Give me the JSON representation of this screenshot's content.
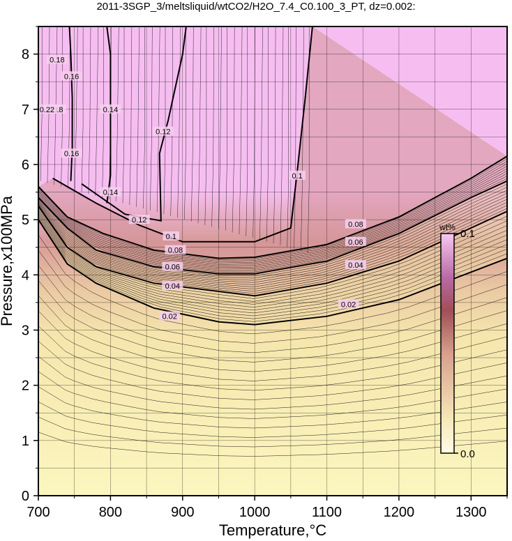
{
  "title": "2011-3SGP_3/meltsliquid/wtCO2/H2O_7.4_C0.100_3_PT, dz=0.002:",
  "chart_data": {
    "type": "heatmap",
    "xlabel": "Temperature,°C",
    "ylabel": "Pressure,x100MPa",
    "xlim": [
      700,
      1350
    ],
    "ylim": [
      0,
      8.5
    ],
    "x_ticks": [
      "700",
      "800",
      "900",
      "1000",
      "1100",
      "1200",
      "1300"
    ],
    "y_ticks": [
      "0",
      "1",
      "2",
      "3",
      "4",
      "5",
      "6",
      "7",
      "8"
    ],
    "grid": true,
    "colorbar": {
      "unit": "wt%",
      "min_label": "0.0",
      "max_label": "0.1",
      "low_color": "#fbf6bf",
      "mid_color": "#cf8f88",
      "high_color": "#f6bef0"
    },
    "contours": [
      {
        "level": 0.02,
        "label": "0.02",
        "points": [
          [
            700,
            5.0
          ],
          [
            740,
            4.2
          ],
          [
            780,
            3.85
          ],
          [
            860,
            3.4
          ],
          [
            950,
            3.15
          ],
          [
            1000,
            3.1
          ],
          [
            1100,
            3.25
          ],
          [
            1200,
            3.55
          ],
          [
            1300,
            4.05
          ],
          [
            1350,
            4.3
          ]
        ]
      },
      {
        "level": 0.04,
        "label": "0.04",
        "points": [
          [
            700,
            5.25
          ],
          [
            740,
            4.5
          ],
          [
            780,
            4.15
          ],
          [
            860,
            3.85
          ],
          [
            950,
            3.7
          ],
          [
            1000,
            3.62
          ],
          [
            1100,
            3.85
          ],
          [
            1200,
            4.25
          ],
          [
            1300,
            4.85
          ],
          [
            1350,
            5.15
          ]
        ]
      },
      {
        "level": 0.06,
        "label": "0.06",
        "points": [
          [
            700,
            5.4
          ],
          [
            740,
            4.85
          ],
          [
            780,
            4.45
          ],
          [
            860,
            4.15
          ],
          [
            950,
            4.02
          ],
          [
            1000,
            4.02
          ],
          [
            1100,
            4.25
          ],
          [
            1200,
            4.75
          ],
          [
            1300,
            5.4
          ],
          [
            1350,
            5.7
          ]
        ]
      },
      {
        "level": 0.08,
        "label": "0.08",
        "points": [
          [
            700,
            5.6
          ],
          [
            740,
            5.05
          ],
          [
            790,
            4.75
          ],
          [
            860,
            4.45
          ],
          [
            950,
            4.3
          ],
          [
            1000,
            4.32
          ],
          [
            1100,
            4.55
          ],
          [
            1200,
            5.05
          ],
          [
            1300,
            5.75
          ],
          [
            1350,
            6.15
          ]
        ]
      },
      {
        "level": 0.1,
        "label": "0.1",
        "points": [
          [
            720,
            5.75
          ],
          [
            780,
            5.3
          ],
          [
            840,
            4.9
          ],
          [
            900,
            4.6
          ],
          [
            1000,
            4.6
          ],
          [
            1050,
            4.85
          ],
          [
            1060,
            6.0
          ],
          [
            1070,
            7.2
          ],
          [
            1080,
            8.5
          ]
        ]
      },
      {
        "level": 0.12,
        "label": "0.12",
        "points": [
          [
            760,
            5.65
          ],
          [
            820,
            5.1
          ],
          [
            870,
            4.98
          ],
          [
            868,
            6.2
          ],
          [
            880,
            6.8
          ],
          [
            900,
            8.0
          ],
          [
            905,
            8.5
          ]
        ]
      },
      {
        "level": 0.14,
        "label": "0.14",
        "points": [
          [
            795,
            5.3
          ],
          [
            800,
            5.8
          ],
          [
            800,
            7.2
          ],
          [
            800,
            8.0
          ],
          [
            795,
            8.5
          ]
        ]
      },
      {
        "level": 0.16,
        "label": "0.16",
        "points": [
          [
            745,
            5.7
          ],
          [
            747,
            6.3
          ],
          [
            747,
            7.2
          ],
          [
            745,
            8.0
          ],
          [
            743,
            8.5
          ]
        ]
      }
    ],
    "contour_labels": [
      {
        "text": "0.02",
        "at": [
          882,
          3.25
        ]
      },
      {
        "text": "0.04",
        "at": [
          886,
          3.8
        ]
      },
      {
        "text": "0.06",
        "at": [
          886,
          4.15
        ]
      },
      {
        "text": "0.08",
        "at": [
          890,
          4.45
        ]
      },
      {
        "text": "0.1",
        "at": [
          884,
          4.7
        ]
      },
      {
        "text": "0.12",
        "at": [
          840,
          5.0
        ]
      },
      {
        "text": "0.14",
        "at": [
          800,
          5.5
        ]
      },
      {
        "text": "0.16",
        "at": [
          746,
          6.2
        ]
      },
      {
        "text": "0.14",
        "at": [
          800,
          7.0
        ]
      },
      {
        "text": "0.16",
        "at": [
          746,
          7.6
        ]
      },
      {
        "text": "0.12",
        "at": [
          873,
          6.6
        ]
      },
      {
        "text": "0.1",
        "at": [
          1059,
          5.8
        ]
      },
      {
        "text": "0.08",
        "at": [
          1140,
          4.92
        ]
      },
      {
        "text": "0.06",
        "at": [
          1140,
          4.6
        ]
      },
      {
        "text": "0.04",
        "at": [
          1140,
          4.18
        ]
      },
      {
        "text": "0.02",
        "at": [
          1130,
          3.47
        ]
      },
      {
        "text": "0.18",
        "at": [
          724,
          7.0
        ]
      },
      {
        "text": "0.22",
        "at": [
          712,
          7.0
        ]
      },
      {
        "text": "0.18",
        "at": [
          726,
          7.9
        ]
      }
    ]
  }
}
